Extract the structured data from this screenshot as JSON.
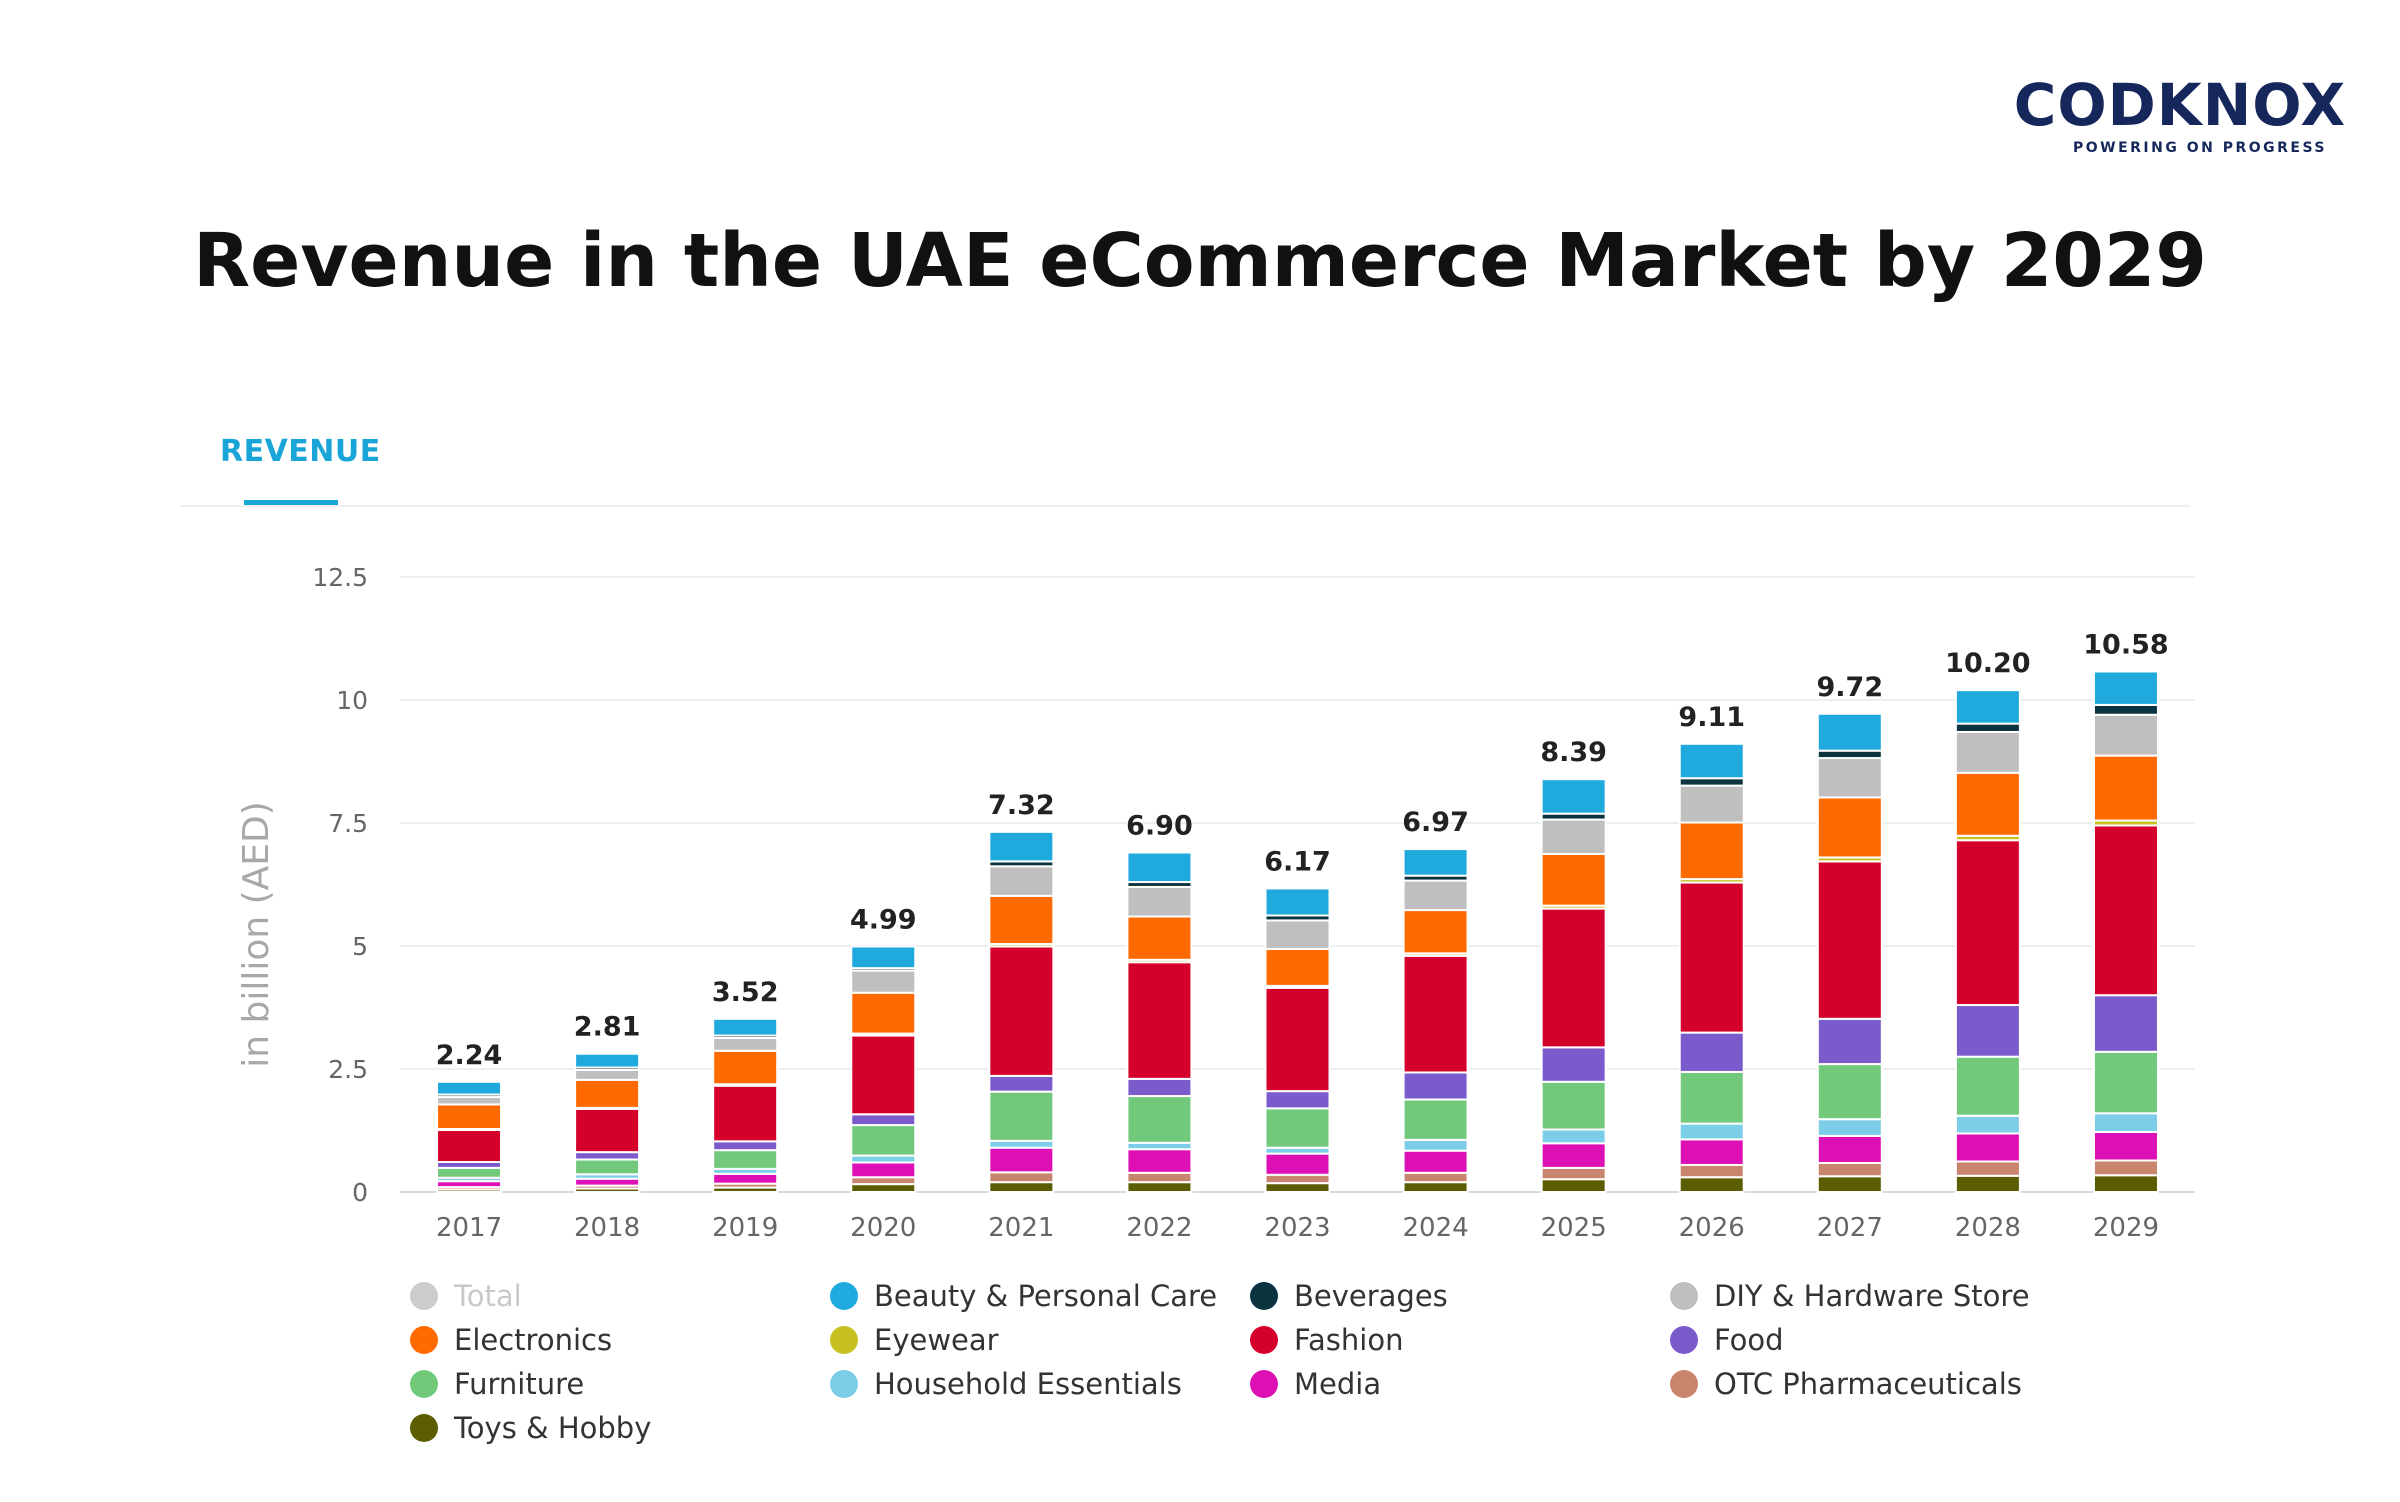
{
  "logo": {
    "text": "CODKNOX",
    "tagline": "POWERING ON PROGRESS"
  },
  "page_title": "Revenue in the UAE eCommerce Market by 2029",
  "tab": {
    "label": "REVENUE"
  },
  "chart_data": {
    "type": "bar",
    "stacked": true,
    "title": "",
    "xlabel": "",
    "ylabel": "in billion (AED)",
    "ylim": [
      0,
      12.5
    ],
    "yticks": [
      "0",
      "2.5",
      "5",
      "7.5",
      "10",
      "12.5"
    ],
    "grid": true,
    "legend_position": "bottom",
    "categories": [
      "2017",
      "2018",
      "2019",
      "2020",
      "2021",
      "2022",
      "2023",
      "2024",
      "2025",
      "2026",
      "2027",
      "2028",
      "2029"
    ],
    "totals": [
      "2.24",
      "2.81",
      "3.52",
      "4.99",
      "7.32",
      "6.90",
      "6.17",
      "6.97",
      "8.39",
      "9.11",
      "9.72",
      "10.20",
      "10.58"
    ],
    "series": [
      {
        "name": "Toys & Hobby",
        "color": "#5c5c00",
        "values": [
          0.05,
          0.07,
          0.09,
          0.16,
          0.2,
          0.2,
          0.18,
          0.2,
          0.26,
          0.3,
          0.32,
          0.33,
          0.34
        ]
      },
      {
        "name": "OTC Pharmaceuticals",
        "color": "#c8846c",
        "values": [
          0.05,
          0.06,
          0.08,
          0.14,
          0.2,
          0.19,
          0.17,
          0.19,
          0.23,
          0.25,
          0.27,
          0.29,
          0.3
        ]
      },
      {
        "name": "Media",
        "color": "#dd10b5",
        "values": [
          0.12,
          0.14,
          0.2,
          0.3,
          0.5,
          0.48,
          0.43,
          0.45,
          0.5,
          0.52,
          0.55,
          0.57,
          0.58
        ]
      },
      {
        "name": "Household Essentials",
        "color": "#7ccde8",
        "values": [
          0.07,
          0.09,
          0.1,
          0.14,
          0.14,
          0.13,
          0.12,
          0.22,
          0.28,
          0.32,
          0.34,
          0.36,
          0.38
        ]
      },
      {
        "name": "Furniture",
        "color": "#72c97b",
        "values": [
          0.2,
          0.3,
          0.38,
          0.62,
          1.0,
          0.95,
          0.8,
          0.82,
          0.97,
          1.05,
          1.12,
          1.2,
          1.25
        ]
      },
      {
        "name": "Food",
        "color": "#7b5acc",
        "values": [
          0.12,
          0.15,
          0.18,
          0.22,
          0.32,
          0.35,
          0.35,
          0.55,
          0.7,
          0.8,
          0.92,
          1.05,
          1.15
        ]
      },
      {
        "name": "Fashion",
        "color": "#d4002b",
        "values": [
          0.65,
          0.88,
          1.13,
          1.6,
          2.63,
          2.37,
          2.1,
          2.37,
          2.82,
          3.05,
          3.2,
          3.35,
          3.45
        ]
      },
      {
        "name": "Eyewear",
        "color": "#c7c020",
        "values": [
          0.02,
          0.02,
          0.03,
          0.04,
          0.05,
          0.05,
          0.04,
          0.05,
          0.06,
          0.07,
          0.08,
          0.09,
          0.1
        ]
      },
      {
        "name": "Electronics",
        "color": "#ff6a00",
        "values": [
          0.5,
          0.57,
          0.68,
          0.83,
          0.98,
          0.88,
          0.75,
          0.88,
          1.05,
          1.15,
          1.22,
          1.28,
          1.32
        ]
      },
      {
        "name": "DIY & Hardware Store",
        "color": "#bfbfbf",
        "values": [
          0.15,
          0.2,
          0.26,
          0.45,
          0.6,
          0.6,
          0.58,
          0.6,
          0.7,
          0.75,
          0.8,
          0.83,
          0.83
        ]
      },
      {
        "name": "Beverages",
        "color": "#0b3440",
        "values": [
          0.05,
          0.05,
          0.05,
          0.05,
          0.1,
          0.1,
          0.1,
          0.1,
          0.12,
          0.15,
          0.15,
          0.17,
          0.2
        ]
      },
      {
        "name": "Beauty & Personal Care",
        "color": "#20a9dc",
        "values": [
          0.26,
          0.28,
          0.34,
          0.44,
          0.6,
          0.6,
          0.55,
          0.54,
          0.7,
          0.7,
          0.75,
          0.68,
          0.68
        ]
      }
    ],
    "legend": [
      {
        "label": "Total",
        "color": "#cccccc",
        "disabled": true
      },
      {
        "label": "Beauty & Personal Care",
        "color": "#20a9dc"
      },
      {
        "label": "Beverages",
        "color": "#0b3440"
      },
      {
        "label": "DIY & Hardware Store",
        "color": "#bfbfbf"
      },
      {
        "label": "Electronics",
        "color": "#ff6a00"
      },
      {
        "label": "Eyewear",
        "color": "#c7c020"
      },
      {
        "label": "Fashion",
        "color": "#d4002b"
      },
      {
        "label": "Food",
        "color": "#7b5acc"
      },
      {
        "label": "Furniture",
        "color": "#72c97b"
      },
      {
        "label": "Household Essentials",
        "color": "#7ccde8"
      },
      {
        "label": "Media",
        "color": "#dd10b5"
      },
      {
        "label": "OTC Pharmaceuticals",
        "color": "#c8846c"
      },
      {
        "label": "Toys & Hobby",
        "color": "#5c5c00"
      }
    ]
  }
}
